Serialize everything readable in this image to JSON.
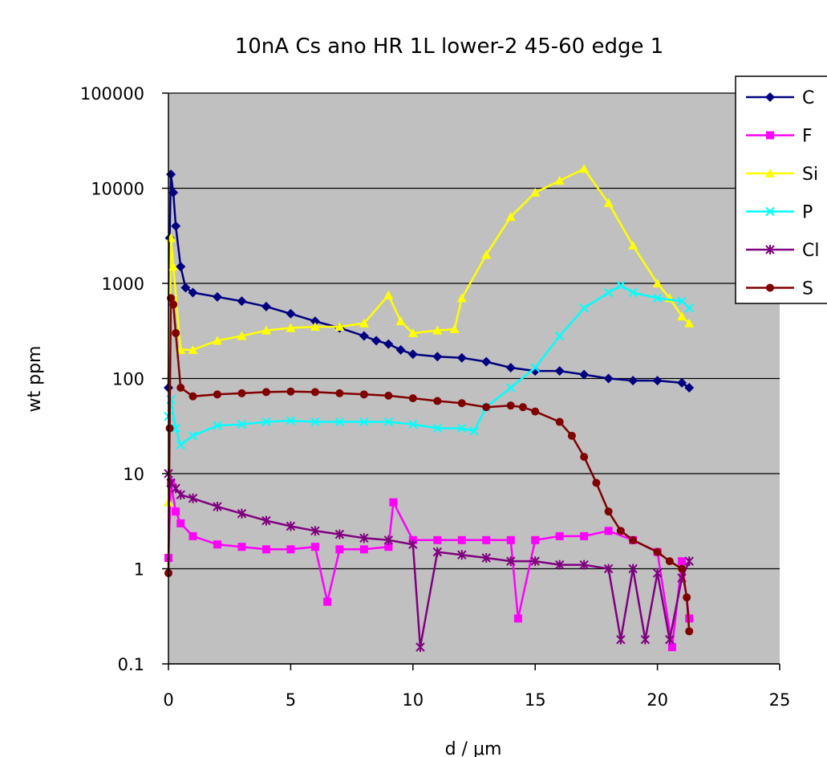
{
  "chart_data": {
    "type": "scatter",
    "title": "10nA Cs ano HR 1L lower-2 45-60 edge 1",
    "xlabel": "d / μm",
    "ylabel": "wt ppm",
    "xlim": [
      0,
      25
    ],
    "ylim": [
      0.1,
      100000
    ],
    "yscale": "log",
    "x_ticks": [
      "0",
      "5",
      "10",
      "15",
      "20",
      "25"
    ],
    "y_ticks": [
      "0.1",
      "1",
      "10",
      "100",
      "1000",
      "10000",
      "100000"
    ],
    "grid": "horizontal",
    "plot_background": "#c0c0c0",
    "legend_position": "right",
    "series": [
      {
        "name": "C",
        "color": "#000080",
        "marker": "diamond",
        "x": [
          0,
          0.05,
          0.1,
          0.2,
          0.3,
          0.5,
          0.7,
          1,
          2,
          3,
          4,
          5,
          6,
          7,
          8,
          8.5,
          9,
          9.5,
          10,
          11,
          12,
          13,
          14,
          15,
          16,
          17,
          18,
          19,
          20,
          21,
          21.3
        ],
        "y": [
          80,
          3000,
          14000,
          9000,
          4000,
          1500,
          900,
          800,
          720,
          650,
          570,
          480,
          400,
          340,
          280,
          250,
          230,
          200,
          180,
          170,
          165,
          150,
          130,
          120,
          120,
          110,
          100,
          95,
          95,
          90,
          80
        ]
      },
      {
        "name": "F",
        "color": "#ff00ff",
        "marker": "square",
        "x": [
          0,
          0.1,
          0.3,
          0.5,
          1,
          2,
          3,
          4,
          5,
          6,
          6.5,
          7,
          8,
          9,
          9.2,
          10,
          11,
          12,
          13,
          14,
          14.3,
          15,
          16,
          17,
          18,
          19,
          20,
          20.6,
          21,
          21.3
        ],
        "y": [
          1.3,
          8,
          4,
          3,
          2.2,
          1.8,
          1.7,
          1.6,
          1.6,
          1.7,
          0.45,
          1.6,
          1.6,
          1.7,
          5,
          2,
          2,
          2,
          2,
          2,
          0.3,
          2,
          2.2,
          2.2,
          2.5,
          2,
          1.5,
          0.15,
          1.2,
          0.3
        ]
      },
      {
        "name": "Si",
        "color": "#ffff00",
        "marker": "triangle",
        "x": [
          0,
          0.1,
          0.2,
          0.5,
          1,
          2,
          3,
          4,
          5,
          6,
          7,
          8,
          9,
          9.5,
          10,
          11,
          11.7,
          12,
          13,
          14,
          15,
          16,
          17,
          18,
          19,
          20,
          20.5,
          21,
          21.3
        ],
        "y": [
          5,
          3000,
          1500,
          200,
          200,
          250,
          280,
          320,
          340,
          350,
          350,
          380,
          750,
          400,
          300,
          320,
          330,
          700,
          2000,
          5000,
          9000,
          12000,
          16000,
          7000,
          2500,
          1000,
          700,
          450,
          380
        ]
      },
      {
        "name": "P",
        "color": "#00ffff",
        "marker": "x",
        "x": [
          0,
          0.1,
          0.3,
          0.5,
          1,
          2,
          3,
          4,
          5,
          6,
          7,
          8,
          9,
          10,
          11,
          12,
          12.5,
          13,
          14,
          15,
          16,
          17,
          18,
          18.5,
          19,
          20,
          21,
          21.3
        ],
        "y": [
          40,
          60,
          30,
          20,
          25,
          32,
          33,
          35,
          36,
          35,
          35,
          35,
          35,
          33,
          30,
          30,
          28,
          50,
          80,
          130,
          280,
          550,
          800,
          950,
          800,
          700,
          650,
          550
        ]
      },
      {
        "name": "Cl",
        "color": "#800080",
        "marker": "star",
        "x": [
          0,
          0.1,
          0.3,
          0.5,
          1,
          2,
          3,
          4,
          5,
          6,
          7,
          8,
          9,
          10,
          10.3,
          11,
          12,
          13,
          14,
          15,
          16,
          17,
          18,
          18.5,
          19,
          19.5,
          20,
          20.5,
          21,
          21.3
        ],
        "y": [
          10,
          8,
          7,
          6,
          5.5,
          4.5,
          3.8,
          3.2,
          2.8,
          2.5,
          2.3,
          2.1,
          2,
          1.8,
          0.15,
          1.5,
          1.4,
          1.3,
          1.2,
          1.2,
          1.1,
          1.1,
          1,
          0.18,
          1,
          0.18,
          0.9,
          0.18,
          0.8,
          1.2
        ]
      },
      {
        "name": "S",
        "color": "#800000",
        "marker": "circle",
        "x": [
          0,
          0.05,
          0.1,
          0.2,
          0.3,
          0.5,
          1,
          2,
          3,
          4,
          5,
          6,
          7,
          8,
          9,
          10,
          11,
          12,
          13,
          14,
          14.5,
          15,
          16,
          16.5,
          17,
          17.5,
          18,
          18.5,
          19,
          20,
          20.5,
          21,
          21.2,
          21.3
        ],
        "y": [
          0.9,
          30,
          700,
          600,
          300,
          80,
          65,
          68,
          70,
          72,
          73,
          72,
          70,
          68,
          66,
          62,
          58,
          55,
          50,
          52,
          50,
          45,
          35,
          25,
          15,
          8,
          4,
          2.5,
          2,
          1.5,
          1.2,
          1,
          0.5,
          0.22
        ]
      }
    ]
  }
}
